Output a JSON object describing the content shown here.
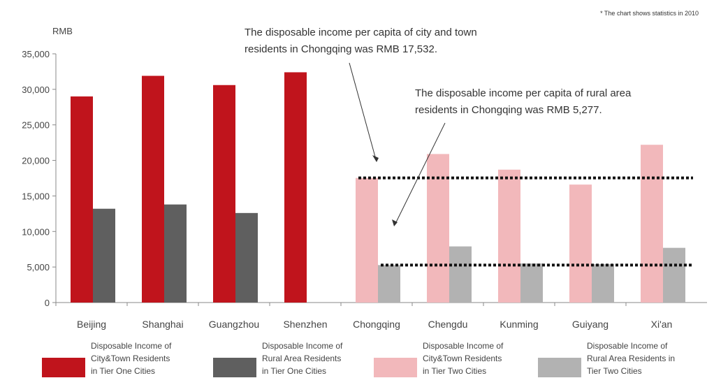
{
  "footnote": "* The chart shows statistics in 2010",
  "chart_data": {
    "type": "bar",
    "ylabel": "RMB",
    "ylim": [
      0,
      35000
    ],
    "yticks": [
      "35,000",
      "30,000",
      "25,000",
      "20,000",
      "15,000",
      "10,000",
      "5,000",
      "0"
    ],
    "ytick_values": [
      35000,
      30000,
      25000,
      20000,
      15000,
      10000,
      5000,
      0
    ],
    "categories": [
      "Beijing",
      "Shanghai",
      "Guangzhou",
      "Shenzhen",
      "Chongqing",
      "Chengdu",
      "Kunming",
      "Guiyang",
      "Xi'an"
    ],
    "series": [
      {
        "name": "Disposable Income of City&Town Residents in Tier One Cities",
        "color": "#c0141c",
        "values": [
          29000,
          31900,
          30600,
          32400,
          null,
          null,
          null,
          null,
          null
        ]
      },
      {
        "name": "Disposable Income of Rural Area Residents in Tier One Cities",
        "color": "#5f5f5f",
        "values": [
          13200,
          13800,
          12600,
          null,
          null,
          null,
          null,
          null,
          null
        ]
      },
      {
        "name": "Disposable Income of City&Town Residents in Tier Two Cities",
        "color": "#f2b8bb",
        "values": [
          null,
          null,
          null,
          null,
          17532,
          20900,
          18700,
          16600,
          22200
        ]
      },
      {
        "name": "Disposable Income of Rural Area Residents in Tier Two Cities",
        "color": "#b2b2b2",
        "values": [
          null,
          null,
          null,
          null,
          5277,
          7900,
          5500,
          5400,
          7700
        ]
      }
    ],
    "reference_lines": [
      17532,
      5277
    ],
    "annotations": [
      {
        "lines": [
          "The disposable income per capita of city and town",
          "residents in Chongqing was RMB 17,532."
        ]
      },
      {
        "lines": [
          "The disposable income per capita of rural area",
          "residents in Chongqing was RMB 5,277."
        ]
      }
    ],
    "legend": [
      {
        "lines": [
          "Disposable Income of",
          "City&Town Residents",
          "in Tier One Cities"
        ],
        "color": "#c0141c"
      },
      {
        "lines": [
          "Disposable Income of",
          "Rural Area Residents",
          "in Tier One Cities"
        ],
        "color": "#5f5f5f"
      },
      {
        "lines": [
          "Disposable Income of",
          "City&Town Residents",
          "in Tier Two Cities"
        ],
        "color": "#f2b8bb"
      },
      {
        "lines": [
          "Disposable Income of",
          "Rural Area Residents in",
          "Tier Two Cities"
        ],
        "color": "#b2b2b2"
      }
    ]
  }
}
